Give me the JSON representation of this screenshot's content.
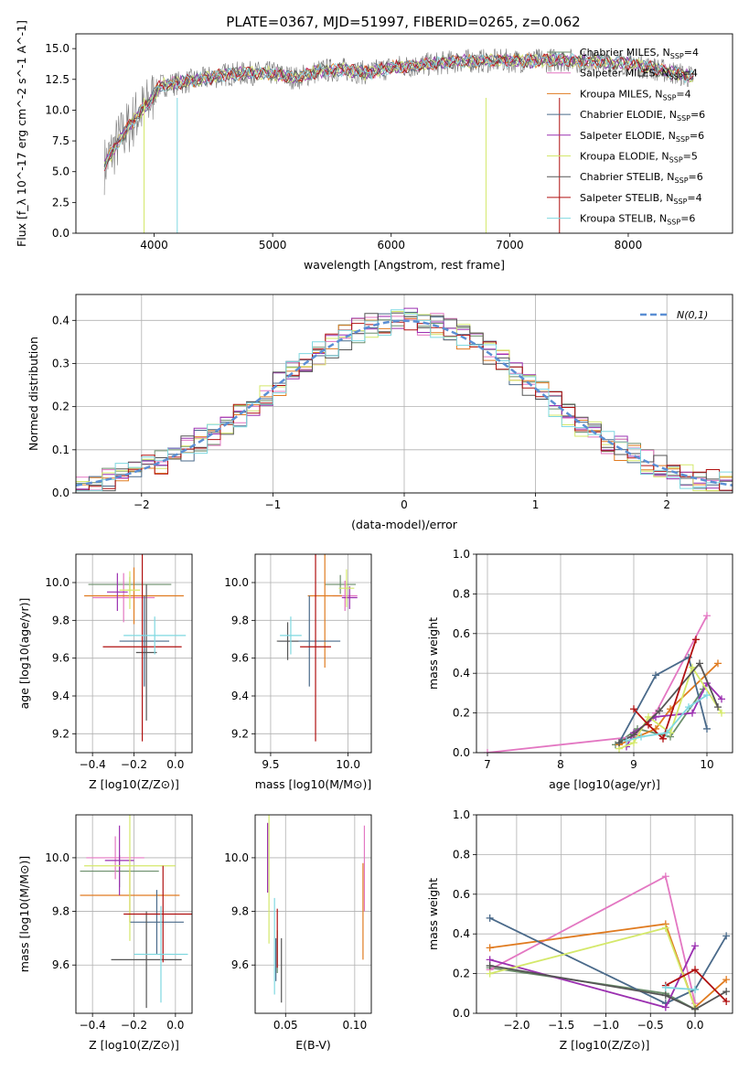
{
  "title": "PLATE=0367, MJD=51997, FIBERID=0265, z=0.062",
  "colors": [
    "#6b8e6b",
    "#e377c2",
    "#e07b20",
    "#4a6a8a",
    "#9b30b0",
    "#d4e86a",
    "#555555",
    "#b01010",
    "#7fd8e0"
  ],
  "models": [
    {
      "label": "Chabrier MILES, N",
      "sub": "SSP",
      "suffix": "=4",
      "color": "#6b8e6b"
    },
    {
      "label": "Salpeter MILES, N",
      "sub": "SSP",
      "suffix": "=4",
      "color": "#e377c2"
    },
    {
      "label": "Kroupa MILES, N",
      "sub": "SSP",
      "suffix": "=4",
      "color": "#e07b20"
    },
    {
      "label": "Chabrier ELODIE, N",
      "sub": "SSP",
      "suffix": "=6",
      "color": "#4a6a8a"
    },
    {
      "label": "Salpeter ELODIE, N",
      "sub": "SSP",
      "suffix": "=6",
      "color": "#9b30b0"
    },
    {
      "label": "Kroupa ELODIE, N",
      "sub": "SSP",
      "suffix": "=5",
      "color": "#d4e86a"
    },
    {
      "label": "Chabrier STELIB, N",
      "sub": "SSP",
      "suffix": "=6",
      "color": "#555555"
    },
    {
      "label": "Salpeter STELIB, N",
      "sub": "SSP",
      "suffix": "=4",
      "color": "#b01010"
    },
    {
      "label": "Kroupa STELIB, N",
      "sub": "SSP",
      "suffix": "=6",
      "color": "#7fd8e0"
    }
  ],
  "chart_data": [
    {
      "type": "line",
      "id": "spectrum",
      "title": "PLATE=0367, MJD=51997, FIBERID=0265, z=0.062",
      "xlabel": "wavelength [Angstrom, rest frame]",
      "ylabel": "Flux [f_λ 10^-17 erg cm^-2 s^-1 A^-1]",
      "xlim": [
        3340,
        8880
      ],
      "ylim": [
        0,
        16.2
      ],
      "xticks": [
        "4000",
        "5000",
        "6000",
        "7000",
        "8000"
      ],
      "yticks": [
        "0.0",
        "2.5",
        "5.0",
        "7.5",
        "10.0",
        "12.5",
        "15.0"
      ],
      "continuum": [
        [
          3580,
          5.5
        ],
        [
          3700,
          7.5
        ],
        [
          3850,
          9.5
        ],
        [
          3950,
          10.5
        ],
        [
          4050,
          12.0
        ],
        [
          4200,
          12.2
        ],
        [
          4400,
          12.5
        ],
        [
          4600,
          12.9
        ],
        [
          4800,
          13.0
        ],
        [
          5000,
          13.0
        ],
        [
          5200,
          12.6
        ],
        [
          5400,
          13.2
        ],
        [
          5600,
          13.3
        ],
        [
          5800,
          13.0
        ],
        [
          6000,
          13.5
        ],
        [
          6200,
          13.6
        ],
        [
          6400,
          13.8
        ],
        [
          6600,
          14.0
        ],
        [
          6800,
          14.0
        ],
        [
          7000,
          14.0
        ],
        [
          7200,
          14.0
        ],
        [
          7400,
          14.1
        ],
        [
          7600,
          14.0
        ],
        [
          7800,
          13.9
        ],
        [
          8000,
          13.8
        ],
        [
          8200,
          13.4
        ],
        [
          8400,
          13.0
        ],
        [
          8560,
          12.6
        ]
      ],
      "grid": false
    },
    {
      "type": "line",
      "id": "residual-histograms",
      "xlabel": "(data-model)/error",
      "ylabel": "Normed distribution",
      "xlim": [
        -2.5,
        2.5
      ],
      "ylim": [
        0,
        0.46
      ],
      "xticks": [
        "−2",
        "−1",
        "0",
        "1",
        "2"
      ],
      "yticks": [
        "0.0",
        "0.1",
        "0.2",
        "0.3",
        "0.4"
      ],
      "legend": "N(0,1)",
      "legend_position": "top-right",
      "grid": true,
      "series": [
        {
          "name": "N(0,1)",
          "mean": 0,
          "sigma": 1
        }
      ]
    },
    {
      "type": "scatter",
      "id": "age-vs-Z",
      "xlabel": "Z [log10(Z/Z⊙)]",
      "ylabel": "age [log10(age/yr)]",
      "xlim": [
        -0.48,
        0.08
      ],
      "ylim": [
        9.1,
        10.15
      ],
      "xticks": [
        "−0.4",
        "−0.2",
        "0.0"
      ],
      "yticks": [
        "9.2",
        "9.4",
        "9.6",
        "9.8",
        "10.0"
      ],
      "grid": true,
      "points": [
        {
          "x": -0.22,
          "y": 9.99,
          "xerr": 0.2,
          "yerr": 0.04,
          "color": "#6b8e6b"
        },
        {
          "x": -0.25,
          "y": 9.92,
          "xerr": 0.15,
          "yerr": 0.13,
          "color": "#e377c2"
        },
        {
          "x": -0.2,
          "y": 9.93,
          "xerr": 0.24,
          "yerr": 0.15,
          "color": "#e07b20"
        },
        {
          "x": -0.15,
          "y": 9.69,
          "xerr": 0.12,
          "yerr": 0.24,
          "color": "#4a6a8a"
        },
        {
          "x": -0.28,
          "y": 9.95,
          "xerr": 0.05,
          "yerr": 0.1,
          "color": "#9b30b0"
        },
        {
          "x": -0.22,
          "y": 9.96,
          "xerr": 0.05,
          "yerr": 0.1,
          "color": "#d4e86a"
        },
        {
          "x": -0.14,
          "y": 9.63,
          "xerr": 0.05,
          "yerr": 0.36,
          "color": "#555555"
        },
        {
          "x": -0.16,
          "y": 9.66,
          "xerr": 0.19,
          "yerr": 0.5,
          "color": "#b01010"
        },
        {
          "x": -0.1,
          "y": 9.72,
          "xerr": 0.15,
          "yerr": 0.1,
          "color": "#7fd8e0"
        }
      ]
    },
    {
      "type": "scatter",
      "id": "age-vs-mass",
      "xlabel": "mass [log10(M/M⊙)]",
      "ylabel": "",
      "xlim": [
        9.4,
        10.15
      ],
      "ylim": [
        9.1,
        10.15
      ],
      "xticks": [
        "9.5",
        "10.0"
      ],
      "yticks": [
        "9.2",
        "9.4",
        "9.6",
        "9.8",
        "10.0"
      ],
      "grid": true,
      "points": [
        {
          "x": 9.95,
          "y": 9.99,
          "xerr": 0.1,
          "yerr": 0.05,
          "color": "#6b8e6b"
        },
        {
          "x": 9.98,
          "y": 9.93,
          "xerr": 0.08,
          "yerr": 0.08,
          "color": "#e377c2"
        },
        {
          "x": 9.85,
          "y": 9.93,
          "xerr": 0.11,
          "yerr": 0.38,
          "color": "#e07b20"
        },
        {
          "x": 9.75,
          "y": 9.69,
          "xerr": 0.2,
          "yerr": 0.24,
          "color": "#4a6a8a"
        },
        {
          "x": 10.01,
          "y": 9.92,
          "xerr": 0.05,
          "yerr": 0.06,
          "color": "#9b30b0"
        },
        {
          "x": 9.99,
          "y": 9.97,
          "xerr": 0.05,
          "yerr": 0.1,
          "color": "#d4e86a"
        },
        {
          "x": 9.61,
          "y": 9.69,
          "xerr": 0.07,
          "yerr": 0.1,
          "color": "#555555"
        },
        {
          "x": 9.79,
          "y": 9.66,
          "xerr": 0.1,
          "yerr": 0.5,
          "color": "#b01010"
        },
        {
          "x": 9.63,
          "y": 9.72,
          "xerr": 0.07,
          "yerr": 0.1,
          "color": "#7fd8e0"
        }
      ]
    },
    {
      "type": "line",
      "id": "mass-weight-vs-age",
      "xlabel": "age  [log10(age/yr)]",
      "ylabel": "mass weight",
      "xlim": [
        6.85,
        10.35
      ],
      "ylim": [
        0,
        1
      ],
      "xticks": [
        "7",
        "8",
        "9",
        "10"
      ],
      "yticks": [
        "0.0",
        "0.2",
        "0.4",
        "0.6",
        "0.8",
        "1.0"
      ],
      "grid": true,
      "series": [
        {
          "color": "#6b8e6b",
          "x": [
            8.75,
            9.05,
            9.5,
            9.95
          ],
          "y": [
            0.04,
            0.12,
            0.08,
            0.32
          ]
        },
        {
          "color": "#e377c2",
          "x": [
            7.0,
            9.0,
            9.3,
            10.0
          ],
          "y": [
            0.0,
            0.08,
            0.2,
            0.69
          ]
        },
        {
          "color": "#e07b20",
          "x": [
            8.8,
            9.3,
            9.5,
            10.15
          ],
          "y": [
            0.04,
            0.12,
            0.22,
            0.45
          ]
        },
        {
          "color": "#4a6a8a",
          "x": [
            8.8,
            9.3,
            9.75,
            10.0
          ],
          "y": [
            0.05,
            0.39,
            0.48,
            0.12
          ]
        },
        {
          "color": "#9b30b0",
          "x": [
            8.9,
            9.0,
            9.3,
            9.8,
            10.0,
            10.2
          ],
          "y": [
            0.03,
            0.1,
            0.18,
            0.2,
            0.35,
            0.27
          ]
        },
        {
          "color": "#d4e86a",
          "x": [
            8.8,
            9.0,
            9.2,
            9.5,
            9.8,
            10.2
          ],
          "y": [
            0.02,
            0.05,
            0.18,
            0.1,
            0.43,
            0.2
          ]
        },
        {
          "color": "#555555",
          "x": [
            8.8,
            9.0,
            9.35,
            9.9,
            10.15
          ],
          "y": [
            0.05,
            0.09,
            0.21,
            0.45,
            0.23
          ]
        },
        {
          "color": "#b01010",
          "x": [
            9.0,
            9.2,
            9.4,
            9.85
          ],
          "y": [
            0.22,
            0.14,
            0.07,
            0.57
          ]
        },
        {
          "color": "#7fd8e0",
          "x": [
            8.9,
            9.1,
            9.45,
            9.75,
            10.0
          ],
          "y": [
            0.06,
            0.08,
            0.1,
            0.23,
            0.29
          ]
        }
      ]
    },
    {
      "type": "scatter",
      "id": "mass-vs-Z",
      "xlabel": "Z [log10(Z/Z⊙)]",
      "ylabel": "mass [log10(M/M⊙)]",
      "xlim": [
        -0.48,
        0.08
      ],
      "ylim": [
        9.42,
        10.16
      ],
      "xticks": [
        "−0.4",
        "−0.2",
        "0.0"
      ],
      "yticks": [
        "9.6",
        "9.8",
        "10.0"
      ],
      "grid": true,
      "points": [
        {
          "x": -0.27,
          "y": 9.95,
          "xerr": 0.19,
          "yerr": 0.06,
          "color": "#6b8e6b"
        },
        {
          "x": -0.29,
          "y": 10.0,
          "xerr": 0.14,
          "yerr": 0.08,
          "color": "#e377c2"
        },
        {
          "x": -0.22,
          "y": 9.86,
          "xerr": 0.24,
          "yerr": 0.1,
          "color": "#e07b20"
        },
        {
          "x": -0.09,
          "y": 9.76,
          "xerr": 0.13,
          "yerr": 0.12,
          "color": "#4a6a8a"
        },
        {
          "x": -0.27,
          "y": 9.99,
          "xerr": 0.07,
          "yerr": 0.13,
          "color": "#9b30b0"
        },
        {
          "x": -0.22,
          "y": 9.97,
          "xerr": 0.22,
          "yerr": 0.28,
          "color": "#d4e86a"
        },
        {
          "x": -0.14,
          "y": 9.62,
          "xerr": 0.17,
          "yerr": 0.18,
          "color": "#555555"
        },
        {
          "x": -0.06,
          "y": 9.79,
          "xerr": 0.19,
          "yerr": 0.18,
          "color": "#b01010"
        },
        {
          "x": -0.07,
          "y": 9.64,
          "xerr": 0.13,
          "yerr": 0.18,
          "color": "#7fd8e0"
        }
      ]
    },
    {
      "type": "scatter",
      "id": "mass-vs-ebv",
      "xlabel": "E(B-V)",
      "ylabel": "",
      "xlim": [
        0.028,
        0.112
      ],
      "ylim": [
        9.42,
        10.16
      ],
      "xticks": [
        "0.05",
        "0.10"
      ],
      "yticks": [
        "9.6",
        "9.8",
        "10.0"
      ],
      "grid": true,
      "points": [
        {
          "x": 0.044,
          "y": 9.65,
          "xerr": 0,
          "yerr": 0.08,
          "color": "#6b8e6b"
        },
        {
          "x": 0.107,
          "y": 9.96,
          "xerr": 0,
          "yerr": 0.16,
          "color": "#e377c2"
        },
        {
          "x": 0.106,
          "y": 9.8,
          "xerr": 0,
          "yerr": 0.18,
          "color": "#e07b20"
        },
        {
          "x": 0.043,
          "y": 9.62,
          "xerr": 0,
          "yerr": 0.08,
          "color": "#4a6a8a"
        },
        {
          "x": 0.037,
          "y": 10.0,
          "xerr": 0,
          "yerr": 0.13,
          "color": "#9b30b0"
        },
        {
          "x": 0.038,
          "y": 9.96,
          "xerr": 0,
          "yerr": 0.28,
          "color": "#d4e86a"
        },
        {
          "x": 0.047,
          "y": 9.58,
          "xerr": 0,
          "yerr": 0.12,
          "color": "#555555"
        },
        {
          "x": 0.044,
          "y": 9.7,
          "xerr": 0,
          "yerr": 0.11,
          "color": "#b01010"
        },
        {
          "x": 0.042,
          "y": 9.67,
          "xerr": 0,
          "yerr": 0.18,
          "color": "#7fd8e0"
        }
      ]
    },
    {
      "type": "line",
      "id": "mass-weight-vs-Z",
      "xlabel": "Z [log10(Z/Z⊙)]",
      "ylabel": "mass weight",
      "xlim": [
        -2.45,
        0.42
      ],
      "ylim": [
        0,
        1
      ],
      "xticks": [
        "−2.0",
        "−1.5",
        "−1.0",
        "−0.5",
        "0.0"
      ],
      "yticks": [
        "0.0",
        "0.2",
        "0.4",
        "0.6",
        "0.8",
        "1.0"
      ],
      "grid": true,
      "series": [
        {
          "color": "#6b8e6b",
          "x": [
            -2.3,
            -0.33,
            0.0
          ],
          "y": [
            0.23,
            0.1,
            0.02
          ]
        },
        {
          "color": "#e377c2",
          "x": [
            -2.3,
            -0.33,
            0.0
          ],
          "y": [
            0.22,
            0.69,
            0.05
          ]
        },
        {
          "color": "#e07b20",
          "x": [
            -2.3,
            -0.33,
            0.0,
            0.35
          ],
          "y": [
            0.33,
            0.45,
            0.03,
            0.17
          ]
        },
        {
          "color": "#4a6a8a",
          "x": [
            -2.3,
            -0.33,
            0.0,
            0.35
          ],
          "y": [
            0.48,
            0.05,
            0.12,
            0.39
          ]
        },
        {
          "color": "#9b30b0",
          "x": [
            -2.3,
            -0.33,
            0.0
          ],
          "y": [
            0.27,
            0.03,
            0.34
          ]
        },
        {
          "color": "#d4e86a",
          "x": [
            -2.3,
            -0.33,
            0.0
          ],
          "y": [
            0.2,
            0.43,
            0.03
          ]
        },
        {
          "color": "#555555",
          "x": [
            -2.3,
            -0.33,
            0.0,
            0.35
          ],
          "y": [
            0.24,
            0.09,
            0.02,
            0.11
          ]
        },
        {
          "color": "#b01010",
          "x": [
            -0.33,
            0.0,
            0.35
          ],
          "y": [
            0.14,
            0.22,
            0.06
          ]
        },
        {
          "color": "#7fd8e0",
          "x": [
            -0.33,
            0.0
          ],
          "y": [
            0.13,
            0.12
          ]
        }
      ]
    }
  ]
}
